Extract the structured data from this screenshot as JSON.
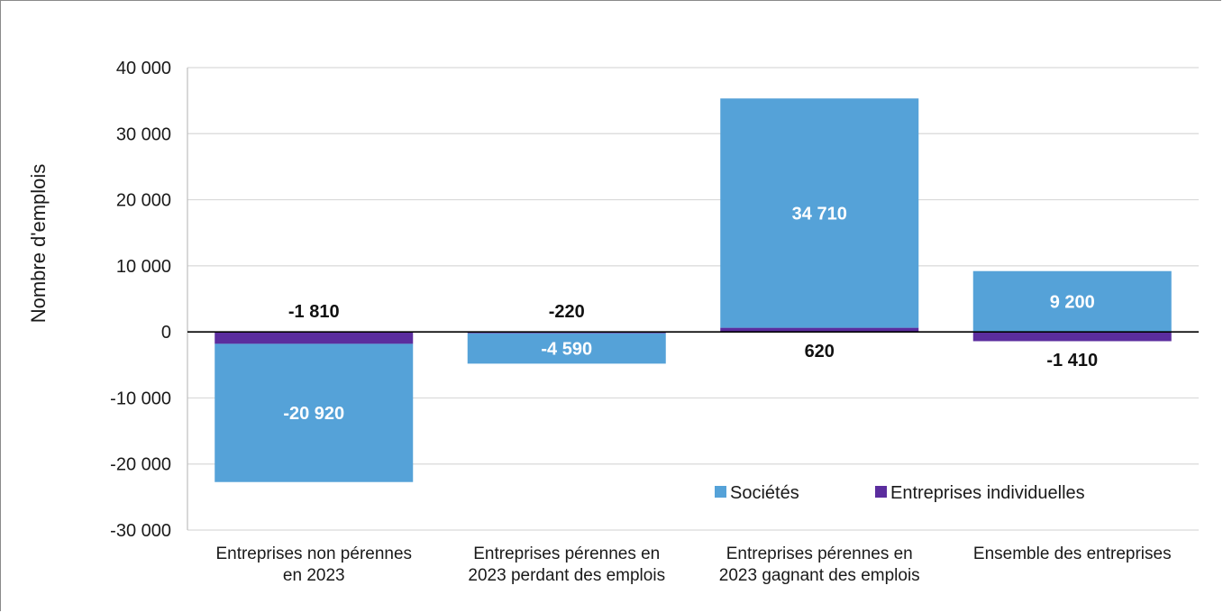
{
  "chart_data": {
    "type": "bar",
    "stacked": true,
    "ylabel": "Nombre d'emplois",
    "ylim": [
      -30000,
      40000
    ],
    "yticks": [
      40000,
      30000,
      20000,
      10000,
      0,
      -10000,
      -20000,
      -30000
    ],
    "ytick_labels": [
      "40 000",
      "30 000",
      "20 000",
      "10 000",
      "0",
      "-10 000",
      "-20 000",
      "-30 000"
    ],
    "categories": [
      [
        "Entreprises non pérennes",
        "en 2023"
      ],
      [
        "Entreprises pérennes en",
        "2023 perdant des emplois"
      ],
      [
        "Entreprises pérennes en",
        "2023 gagnant des emplois"
      ],
      [
        "Ensemble des entreprises"
      ]
    ],
    "series": [
      {
        "name": "Entreprises individuelles",
        "color": "#5b2d9e",
        "values": [
          -1810,
          -220,
          620,
          -1410
        ],
        "labels": [
          "-1 810",
          "-220",
          "620",
          "-1 410"
        ]
      },
      {
        "name": "Sociétés",
        "color": "#55a2d8",
        "values": [
          -20920,
          -4590,
          34710,
          9200
        ],
        "labels": [
          "-20 920",
          "-4 590",
          "34 710",
          "9 200"
        ]
      }
    ],
    "legend": {
      "position": "bottom-right",
      "items": [
        {
          "label": "Sociétés",
          "color": "#55a2d8"
        },
        {
          "label": "Entreprises individuelles",
          "color": "#5b2d9e"
        }
      ]
    },
    "grid": true
  }
}
